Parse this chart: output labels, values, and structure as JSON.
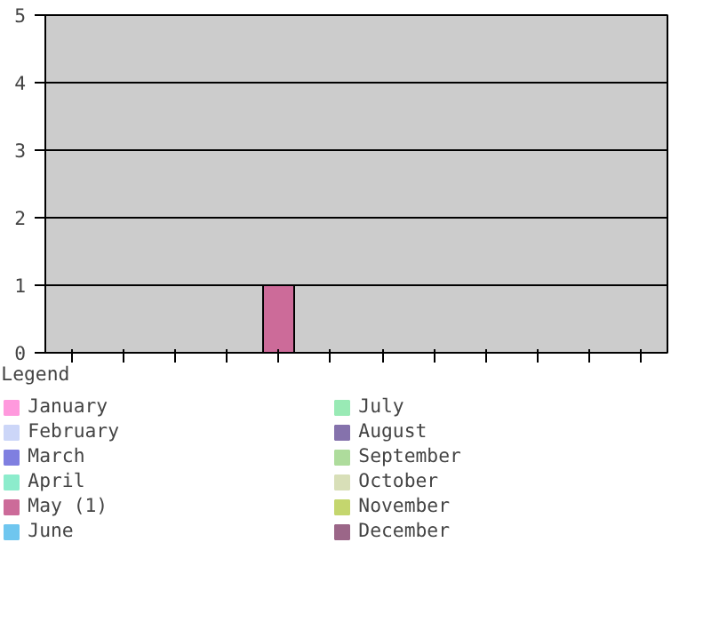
{
  "chart_data": {
    "type": "bar",
    "legend_title": "Legend",
    "categories": [
      null,
      null,
      null,
      null,
      null,
      null,
      null,
      null,
      null,
      null,
      null,
      null
    ],
    "ylim": [
      0,
      5
    ],
    "yticks": [
      0,
      1,
      2,
      3,
      4,
      5
    ],
    "grid": "y",
    "legend": "bottom",
    "tick_labels": "y",
    "series": [
      {
        "name": "January",
        "color": "#ff99dd",
        "values": [
          0,
          null,
          null,
          null,
          null,
          null,
          null,
          null,
          null,
          null,
          null,
          null
        ]
      },
      {
        "name": "February",
        "color": "#ccd6f8",
        "values": [
          null,
          0,
          null,
          null,
          null,
          null,
          null,
          null,
          null,
          null,
          null,
          null
        ]
      },
      {
        "name": "March",
        "color": "#7f7fe0",
        "values": [
          null,
          null,
          0,
          null,
          null,
          null,
          null,
          null,
          null,
          null,
          null,
          null
        ]
      },
      {
        "name": "April",
        "color": "#8ceccc",
        "values": [
          null,
          null,
          null,
          0,
          null,
          null,
          null,
          null,
          null,
          null,
          null,
          null
        ]
      },
      {
        "name": "May (1)",
        "color": "#cc6b99",
        "values": [
          null,
          null,
          null,
          null,
          1,
          null,
          null,
          null,
          null,
          null,
          null,
          null
        ]
      },
      {
        "name": "June",
        "color": "#6fc6ef",
        "values": [
          null,
          null,
          null,
          null,
          null,
          0,
          null,
          null,
          null,
          null,
          null,
          null
        ]
      },
      {
        "name": "July",
        "color": "#99eab5",
        "values": [
          null,
          null,
          null,
          null,
          null,
          null,
          0,
          null,
          null,
          null,
          null,
          null
        ]
      },
      {
        "name": "August",
        "color": "#8572ac",
        "values": [
          null,
          null,
          null,
          null,
          null,
          null,
          null,
          0,
          null,
          null,
          null,
          null
        ]
      },
      {
        "name": "September",
        "color": "#aedc9c",
        "values": [
          null,
          null,
          null,
          null,
          null,
          null,
          null,
          null,
          0,
          null,
          null,
          null
        ]
      },
      {
        "name": "October",
        "color": "#d8dfb8",
        "values": [
          null,
          null,
          null,
          null,
          null,
          null,
          null,
          null,
          null,
          0,
          null,
          null
        ]
      },
      {
        "name": "November",
        "color": "#c4d66e",
        "values": [
          null,
          null,
          null,
          null,
          null,
          null,
          null,
          null,
          null,
          null,
          0,
          null
        ]
      },
      {
        "name": "December",
        "color": "#9b6688",
        "values": [
          null,
          null,
          null,
          null,
          null,
          null,
          null,
          null,
          null,
          null,
          null,
          0
        ]
      }
    ]
  }
}
